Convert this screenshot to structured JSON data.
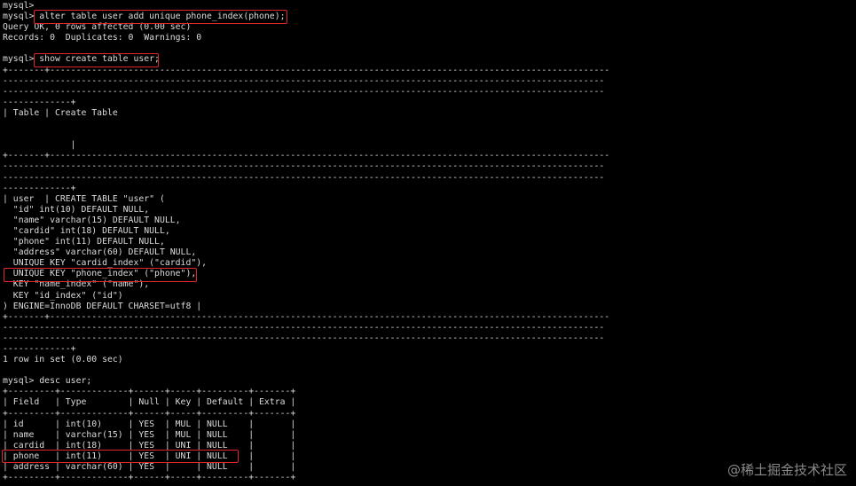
{
  "terminal": {
    "lines": [
      "mysql>",
      "mysql> alter table user add unique phone_index(phone);",
      "Query OK, 0 rows affected (0.00 sec)",
      "Records: 0  Duplicates: 0  Warnings: 0",
      "",
      "mysql> show create table user;",
      "+-------+-----------------------------------------------------------------------------------------------------------",
      "-------------------------------------------------------------------------------------------------------------------",
      "-------------------------------------------------------------------------------------------------------------------",
      "-------------+",
      "| Table | Create Table",
      "",
      "",
      "             |",
      "+-------+-----------------------------------------------------------------------------------------------------------",
      "-------------------------------------------------------------------------------------------------------------------",
      "-------------------------------------------------------------------------------------------------------------------",
      "-------------+",
      "| user  | CREATE TABLE \"user\" (",
      "  \"id\" int(10) DEFAULT NULL,",
      "  \"name\" varchar(15) DEFAULT NULL,",
      "  \"cardid\" int(18) DEFAULT NULL,",
      "  \"phone\" int(11) DEFAULT NULL,",
      "  \"address\" varchar(60) DEFAULT NULL,",
      "  UNIQUE KEY \"cardid_index\" (\"cardid\"),",
      "  UNIQUE KEY \"phone_index\" (\"phone\"),",
      "  KEY \"name_index\" (\"name\"),",
      "  KEY \"id_index\" (\"id\")",
      ") ENGINE=InnoDB DEFAULT CHARSET=utf8 |",
      "+-------+-----------------------------------------------------------------------------------------------------------",
      "-------------------------------------------------------------------------------------------------------------------",
      "-------------------------------------------------------------------------------------------------------------------",
      "-------------+",
      "1 row in set (0.00 sec)",
      "",
      "mysql> desc user;",
      "+---------+-------------+------+-----+---------+-------+",
      "| Field   | Type        | Null | Key | Default | Extra |",
      "+---------+-------------+------+-----+---------+-------+",
      "| id      | int(10)     | YES  | MUL | NULL    |       |",
      "| name    | varchar(15) | YES  | MUL | NULL    |       |",
      "| cardid  | int(18)     | YES  | UNI | NULL    |       |",
      "| phone   | int(11)     | YES  | UNI | NULL    |       |",
      "| address | varchar(60) | YES  |     | NULL    |       |",
      "+---------+-------------+------+-----+---------+-------+"
    ]
  },
  "highlight_color": "#e0262c",
  "watermark": "@稀土掘金技术社区"
}
